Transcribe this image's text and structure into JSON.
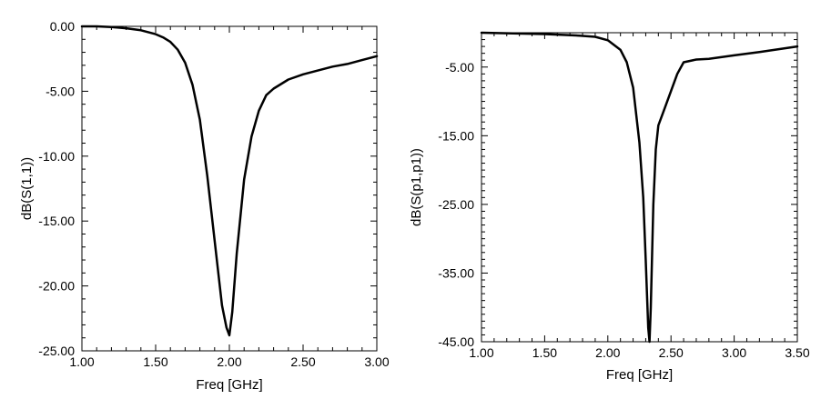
{
  "chart_data": [
    {
      "type": "line",
      "title": "",
      "xlabel": "Freq [GHz]",
      "ylabel": "dB(S(1,1))",
      "xlim": [
        1.0,
        3.0
      ],
      "ylim": [
        -25.0,
        0.0
      ],
      "x_ticks": [
        "1.00",
        "1.50",
        "2.00",
        "2.50",
        "3.00"
      ],
      "y_ticks": [
        "0.00",
        "-5.00",
        "-10.00",
        "-15.00",
        "-20.00",
        "-25.00"
      ],
      "grid": false,
      "series": [
        {
          "x": [
            1.0,
            1.1,
            1.2,
            1.3,
            1.4,
            1.5,
            1.55,
            1.6,
            1.65,
            1.7,
            1.75,
            1.8,
            1.85,
            1.9,
            1.95,
            1.98,
            2.0,
            2.02,
            2.05,
            2.1,
            2.15,
            2.2,
            2.25,
            2.3,
            2.4,
            2.5,
            2.6,
            2.7,
            2.8,
            2.9,
            3.0
          ],
          "y": [
            0.0,
            0.0,
            -0.05,
            -0.15,
            -0.3,
            -0.6,
            -0.85,
            -1.2,
            -1.8,
            -2.8,
            -4.5,
            -7.2,
            -11.5,
            -16.5,
            -21.5,
            -23.2,
            -23.8,
            -22.0,
            -17.5,
            -11.8,
            -8.5,
            -6.5,
            -5.3,
            -4.8,
            -4.1,
            -3.7,
            -3.4,
            -3.1,
            -2.9,
            -2.6,
            -2.3
          ]
        }
      ]
    },
    {
      "type": "line",
      "title": "",
      "xlabel": "Freq [GHz]",
      "ylabel": "dB(S(p1,p1))",
      "xlim": [
        1.0,
        3.5
      ],
      "ylim": [
        -45.0,
        0.0
      ],
      "x_ticks": [
        "1.00",
        "1.50",
        "2.00",
        "2.50",
        "3.00",
        "3.50"
      ],
      "y_ticks": [
        "-5.00",
        "-15.00",
        "-25.00",
        "-35.00",
        "-45.00"
      ],
      "grid": false,
      "series": [
        {
          "x": [
            1.0,
            1.25,
            1.5,
            1.75,
            1.9,
            2.0,
            2.1,
            2.15,
            2.2,
            2.25,
            2.28,
            2.3,
            2.32,
            2.33,
            2.34,
            2.36,
            2.38,
            2.4,
            2.45,
            2.5,
            2.55,
            2.6,
            2.7,
            2.8,
            3.0,
            3.2,
            3.5
          ],
          "y": [
            0.0,
            -0.1,
            -0.2,
            -0.4,
            -0.6,
            -1.1,
            -2.5,
            -4.3,
            -8.0,
            -16.0,
            -24.0,
            -33.0,
            -43.0,
            -45.0,
            -40.0,
            -25.0,
            -17.0,
            -13.5,
            -11.0,
            -8.5,
            -6.0,
            -4.3,
            -3.9,
            -3.8,
            -3.3,
            -2.8,
            -2.0
          ]
        }
      ]
    }
  ]
}
